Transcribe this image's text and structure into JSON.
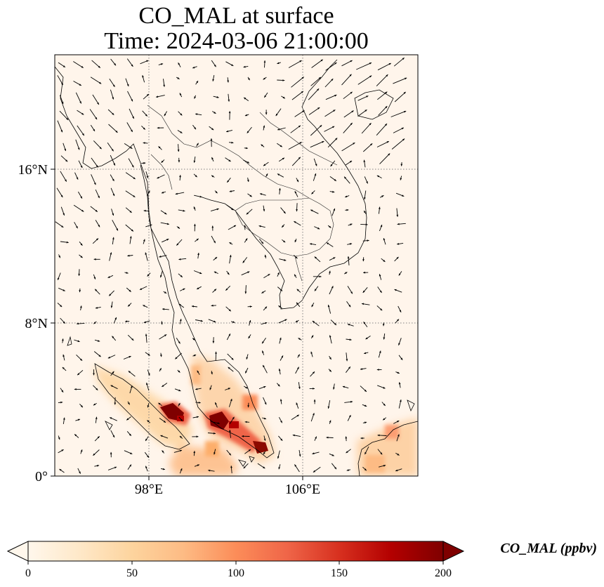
{
  "figure": {
    "title": "CO_MAL at surface",
    "subtitle": "Time: 2024-03-06 21:00:00"
  },
  "map": {
    "lon_ticks": [
      "98°E",
      "106°E"
    ],
    "lat_ticks": [
      "16°N",
      "8°N",
      "0°"
    ],
    "lon_tick_values": [
      98,
      106
    ],
    "lat_tick_values": [
      16,
      8,
      0
    ],
    "lon_range": [
      93,
      112
    ],
    "lat_range": [
      0,
      22
    ],
    "gridlines": "dotted",
    "overlay": "wind vectors (arrows)",
    "background_color": "#fff5eb",
    "hotspot_color": "#7f0000"
  },
  "colorbar": {
    "label": "CO_MAL (ppbv)",
    "ticks": [
      "0",
      "50",
      "100",
      "150",
      "200"
    ],
    "tick_values": [
      0,
      50,
      100,
      150,
      200
    ],
    "range": [
      0,
      200
    ],
    "extend": "both",
    "colormap": "OrRd",
    "colors": [
      "#fff7ec",
      "#fee8c8",
      "#fdd49e",
      "#fdbb84",
      "#fc8d59",
      "#ef6548",
      "#d7301f",
      "#b30000",
      "#7f0000"
    ]
  }
}
